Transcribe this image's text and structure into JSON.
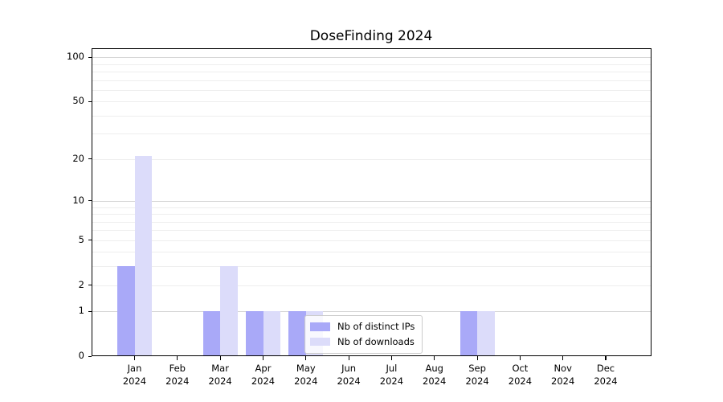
{
  "title": "DoseFinding 2024",
  "chart_data": {
    "type": "bar",
    "title": "DoseFinding 2024",
    "categories": [
      "Jan",
      "Feb",
      "Mar",
      "Apr",
      "May",
      "Jun",
      "Jul",
      "Aug",
      "Sep",
      "Oct",
      "Nov",
      "Dec"
    ],
    "year_label": "2024",
    "series": [
      {
        "name": "Nb of distinct IPs",
        "color": "#a9a9f8",
        "values": [
          3,
          0,
          1,
          1,
          1,
          0,
          0,
          0,
          1,
          0,
          0,
          0
        ]
      },
      {
        "name": "Nb of downloads",
        "color": "#dcdcfa",
        "values": [
          21,
          0,
          3,
          1,
          1,
          0,
          0,
          0,
          1,
          0,
          0,
          0
        ]
      }
    ],
    "xlabel": "",
    "ylabel": "",
    "yscale": "log1p",
    "yticks": [
      0,
      1,
      2,
      5,
      10,
      20,
      50,
      100
    ],
    "ylim": [
      0,
      115
    ],
    "grid": {
      "major_values": [
        1,
        10,
        100
      ],
      "minor_values": [
        2,
        3,
        4,
        5,
        6,
        7,
        8,
        9,
        20,
        30,
        40,
        50,
        60,
        70,
        80,
        90
      ],
      "major_color": "#d6d6d6",
      "minor_color": "#eeeeee"
    },
    "legend_position": "inside lower-center (over Jun-Aug)"
  },
  "legend": {
    "items": [
      {
        "label": "Nb of distinct IPs",
        "color": "#a9a9f8"
      },
      {
        "label": "Nb of downloads",
        "color": "#dcdcfa"
      }
    ]
  }
}
